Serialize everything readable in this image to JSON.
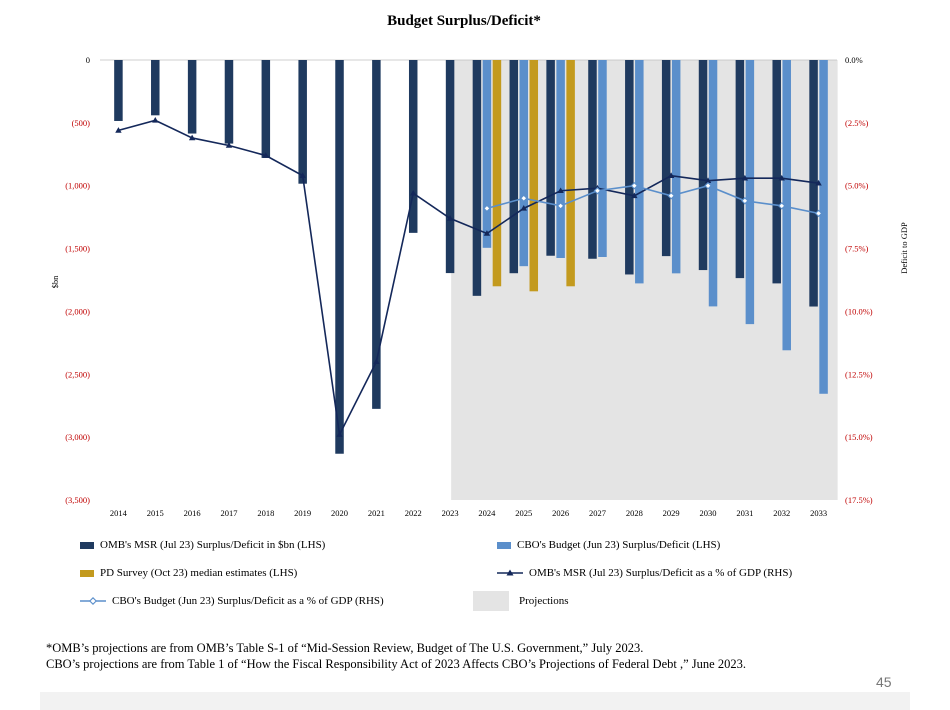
{
  "chart_data": {
    "type": "bar+line",
    "title": "Budget Surplus/Deficit*",
    "ylabel_left": "$bn",
    "ylabel_right": "Deficit to GDP",
    "ylim_left": [
      -3500,
      0
    ],
    "ylim_right": [
      -17.5,
      0
    ],
    "left_ticks": [
      {
        "value": 0,
        "label": "0"
      },
      {
        "value": -500,
        "label": "(500)"
      },
      {
        "value": -1000,
        "label": "(1,000)"
      },
      {
        "value": -1500,
        "label": "(1,500)"
      },
      {
        "value": -2000,
        "label": "(2,000)"
      },
      {
        "value": -2500,
        "label": "(2,500)"
      },
      {
        "value": -3000,
        "label": "(3,000)"
      },
      {
        "value": -3500,
        "label": "(3,500)"
      }
    ],
    "right_ticks": [
      {
        "value": 0,
        "label": "0.0%"
      },
      {
        "value": -2.5,
        "label": "(2.5%)"
      },
      {
        "value": -5,
        "label": "(5.0%)"
      },
      {
        "value": -7.5,
        "label": "(7.5%)"
      },
      {
        "value": -10,
        "label": "(10.0%)"
      },
      {
        "value": -12.5,
        "label": "(12.5%)"
      },
      {
        "value": -15,
        "label": "(15.0%)"
      },
      {
        "value": -17.5,
        "label": "(17.5%)"
      }
    ],
    "categories": [
      "2014",
      "2015",
      "2016",
      "2017",
      "2018",
      "2019",
      "2020",
      "2021",
      "2022",
      "2023",
      "2024",
      "2025",
      "2026",
      "2027",
      "2028",
      "2029",
      "2030",
      "2031",
      "2032",
      "2033"
    ],
    "projection_start": "2024",
    "series": [
      {
        "name": "OMB's MSR (Jul 23) Surplus/Deficit in $bn (LHS)",
        "kind": "bar",
        "color": "#1f3a5f",
        "values": [
          -485,
          -440,
          -585,
          -665,
          -779,
          -984,
          -3132,
          -2775,
          -1375,
          -1695,
          -1876,
          -1696,
          -1557,
          -1581,
          -1706,
          -1560,
          -1671,
          -1735,
          -1777,
          -1961
        ]
      },
      {
        "name": "CBO's Budget (Jun 23) Surplus/Deficit (LHS)",
        "kind": "bar",
        "color": "#5b8fcb",
        "values": [
          null,
          null,
          null,
          null,
          null,
          null,
          null,
          null,
          null,
          null,
          -1494,
          -1640,
          -1575,
          -1567,
          -1777,
          -1697,
          -1960,
          -2101,
          -2309,
          -2655
        ]
      },
      {
        "name": "PD Survey (Oct 23) median estimates (LHS)",
        "kind": "bar",
        "color": "#c39a1e",
        "values": [
          null,
          null,
          null,
          null,
          null,
          null,
          null,
          null,
          null,
          null,
          -1800,
          -1840,
          -1800,
          null,
          null,
          null,
          null,
          null,
          null,
          null
        ]
      },
      {
        "name": "OMB's MSR (Jul 23) Surplus/Deficit as a % of GDP (RHS)",
        "kind": "line",
        "color": "#14285a",
        "marker": "triangle",
        "values": [
          -2.8,
          -2.4,
          -3.1,
          -3.4,
          -3.8,
          -4.6,
          -14.9,
          -12.0,
          -5.3,
          -6.3,
          -6.9,
          -5.9,
          -5.2,
          -5.1,
          -5.4,
          -4.6,
          -4.8,
          -4.7,
          -4.7,
          -4.9
        ]
      },
      {
        "name": "CBO's Budget (Jun 23) Surplus/Deficit as a % of GDP (RHS)",
        "kind": "line",
        "color": "#5b8fcb",
        "marker": "diamond",
        "values": [
          null,
          null,
          null,
          null,
          null,
          null,
          null,
          null,
          null,
          null,
          -5.9,
          -5.5,
          -5.8,
          -5.2,
          -5.0,
          -5.4,
          -5.0,
          -5.6,
          -5.8,
          -6.1
        ]
      }
    ],
    "projections_label": "Projections",
    "projections_color": "#e4e4e4"
  },
  "legend": {
    "omb_bar": "OMB's MSR (Jul 23) Surplus/Deficit in $bn (LHS)",
    "cbo_bar": "CBO's Budget (Jun 23) Surplus/Deficit (LHS)",
    "pd_bar": "PD Survey (Oct 23) median estimates (LHS)",
    "omb_line": "OMB's MSR (Jul 23) Surplus/Deficit as a % of GDP (RHS)",
    "cbo_line": "CBO's Budget (Jun 23) Surplus/Deficit as a % of GDP (RHS)",
    "projections": "Projections"
  },
  "footnote": {
    "line1": "*OMB’s projections are from OMB’s Table S-1 of “Mid-Session Review, Budget of The U.S. Government,” July 2023.",
    "line2": "CBO’s projections are from Table 1 of “How the Fiscal Responsibility Act of 2023 Affects CBO’s Projections of Federal Debt ,” June 2023."
  },
  "page_number": "45",
  "colors": {
    "left_tick": "#c00000",
    "axis_text": "#000000"
  }
}
